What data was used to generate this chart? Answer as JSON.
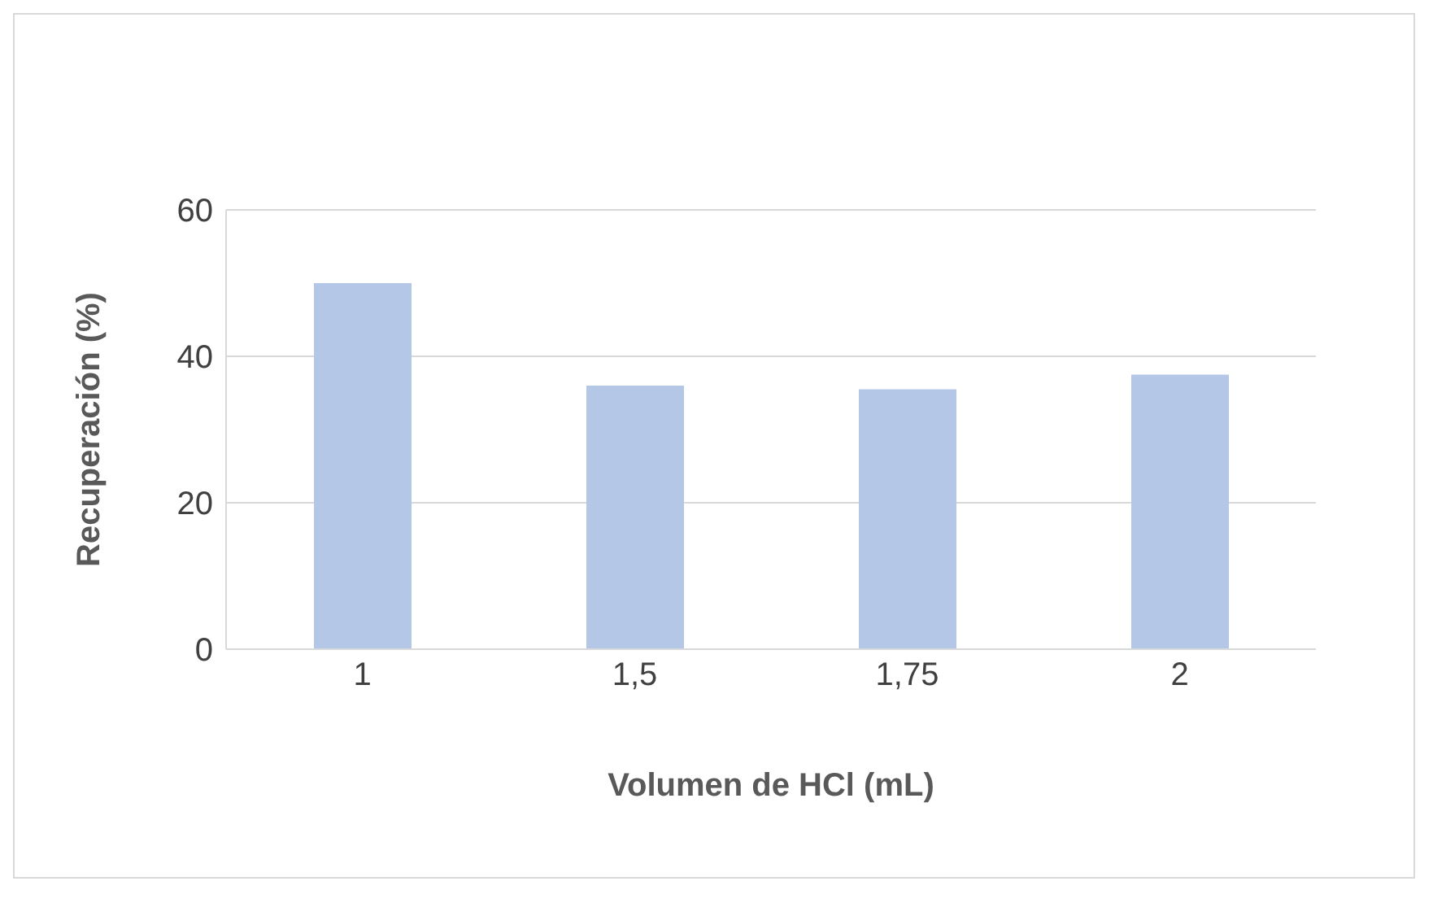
{
  "chart_data": {
    "type": "bar",
    "xlabel": "Volumen de HCl (mL)",
    "ylabel": "Recuperación (%)",
    "categories": [
      "1",
      "1,5",
      "1,75",
      "2"
    ],
    "values": [
      50,
      36,
      35.5,
      37.5
    ],
    "color": "#b4c7e7",
    "ylim": [
      0,
      60
    ],
    "yticks": [
      0,
      20,
      40,
      60
    ],
    "grid": "y"
  }
}
